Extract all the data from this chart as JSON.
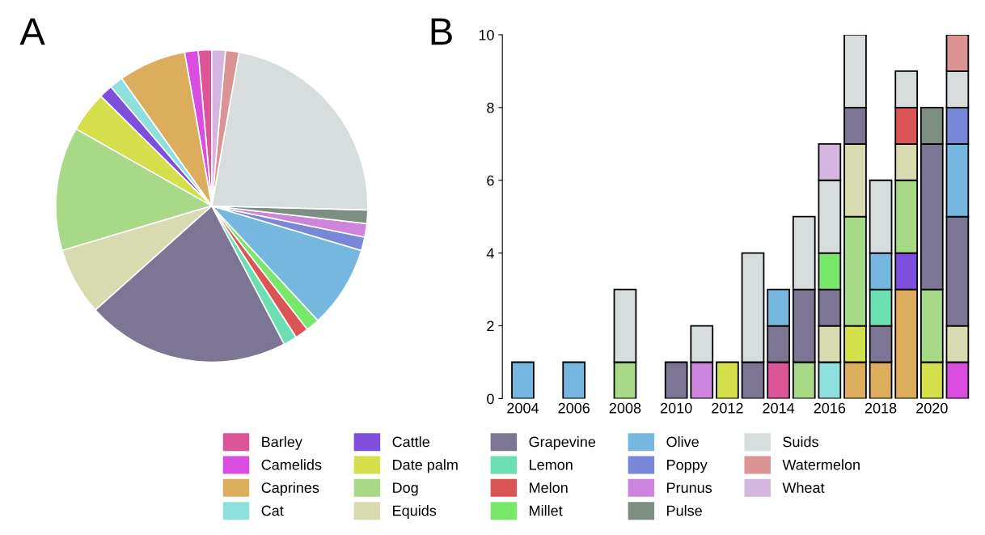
{
  "chart_data": [
    {
      "type": "pie",
      "title": "A",
      "legend": "bottom",
      "categories": [
        "Barley",
        "Camelids",
        "Caprines",
        "Cat",
        "Cattle",
        "Date palm",
        "Dog",
        "Equids",
        "Grapevine",
        "Lemon",
        "Melon",
        "Millet",
        "Olive",
        "Poppy",
        "Prunus",
        "Pulse",
        "Suids",
        "Watermelon",
        "Wheat"
      ],
      "values": [
        1.4,
        1.4,
        7.0,
        1.4,
        1.4,
        4.2,
        12.8,
        7.0,
        21.1,
        1.4,
        1.4,
        1.4,
        8.5,
        1.4,
        1.4,
        1.4,
        22.6,
        1.4,
        1.4
      ],
      "colors": [
        "#dc5597",
        "#d94de0",
        "#dcad5c",
        "#8ee0df",
        "#7e4fdc",
        "#d4e04b",
        "#a8d987",
        "#d8dbb0",
        "#7c7593",
        "#6bdfb1",
        "#dc5556",
        "#77e86a",
        "#76b7e0",
        "#7788d9",
        "#cd84dc",
        "#7c8f82",
        "#d7dcdc",
        "#db9393",
        "#d4b6e0"
      ]
    },
    {
      "type": "bar",
      "title": "B",
      "stacked": true,
      "categories": [
        "2004",
        null,
        "2006",
        null,
        "2008",
        null,
        "2010",
        null,
        "2012",
        null,
        "2014",
        null,
        "2016",
        null,
        "2018",
        null,
        "2020",
        null
      ],
      "ylim": [
        0,
        10
      ],
      "yticks": [
        0,
        2,
        4,
        6,
        8,
        10
      ],
      "series": [
        {
          "color": "#dc5597",
          "values": [
            0,
            0,
            0,
            0,
            0,
            0,
            0,
            0,
            0,
            0,
            1,
            0,
            0,
            0,
            0,
            0,
            0,
            0
          ]
        },
        {
          "color": "#d94de0",
          "values": [
            0,
            0,
            0,
            0,
            0,
            0,
            0,
            0,
            0,
            0,
            0,
            0,
            0,
            0,
            0,
            0,
            0,
            1
          ]
        },
        {
          "color": "#dcad5c",
          "values": [
            0,
            0,
            0,
            0,
            0,
            0,
            0,
            0,
            0,
            0,
            0,
            0,
            0,
            1,
            1,
            3,
            0,
            0
          ]
        },
        {
          "color": "#8ee0df",
          "values": [
            0,
            0,
            0,
            0,
            0,
            0,
            0,
            0,
            0,
            0,
            0,
            0,
            1,
            0,
            0,
            0,
            0,
            0
          ]
        },
        {
          "color": "#7e4fdc",
          "values": [
            0,
            0,
            0,
            0,
            0,
            0,
            0,
            0,
            0,
            0,
            0,
            0,
            0,
            0,
            0,
            1,
            0,
            0
          ]
        },
        {
          "color": "#d4e04b",
          "values": [
            0,
            0,
            0,
            0,
            0,
            0,
            0,
            0,
            1,
            0,
            0,
            0,
            0,
            1,
            0,
            0,
            1,
            0
          ]
        },
        {
          "color": "#a8d987",
          "values": [
            0,
            0,
            0,
            0,
            1,
            0,
            0,
            0,
            0,
            0,
            0,
            1,
            0,
            3,
            0,
            2,
            2,
            0
          ]
        },
        {
          "color": "#d8dbb0",
          "values": [
            0,
            0,
            0,
            0,
            0,
            0,
            0,
            0,
            0,
            0,
            0,
            0,
            1,
            2,
            0,
            1,
            0,
            1
          ]
        },
        {
          "color": "#7c7593",
          "values": [
            0,
            0,
            0,
            0,
            0,
            0,
            1,
            0,
            0,
            1,
            1,
            2,
            1,
            1,
            1,
            0,
            4,
            3
          ]
        },
        {
          "color": "#6bdfb1",
          "values": [
            0,
            0,
            0,
            0,
            0,
            0,
            0,
            0,
            0,
            0,
            0,
            0,
            0,
            0,
            1,
            0,
            0,
            0
          ]
        },
        {
          "color": "#dc5556",
          "values": [
            0,
            0,
            0,
            0,
            0,
            0,
            0,
            0,
            0,
            0,
            0,
            0,
            0,
            0,
            0,
            1,
            0,
            0
          ]
        },
        {
          "color": "#77e86a",
          "values": [
            0,
            0,
            0,
            0,
            0,
            0,
            0,
            0,
            0,
            0,
            0,
            0,
            1,
            0,
            0,
            0,
            0,
            0
          ]
        },
        {
          "color": "#76b7e0",
          "values": [
            1,
            0,
            1,
            0,
            0,
            0,
            0,
            0,
            0,
            0,
            1,
            0,
            0,
            0,
            1,
            0,
            0,
            2
          ]
        },
        {
          "color": "#7788d9",
          "values": [
            0,
            0,
            0,
            0,
            0,
            0,
            0,
            0,
            0,
            0,
            0,
            0,
            0,
            0,
            0,
            0,
            0,
            1
          ]
        },
        {
          "color": "#cd84dc",
          "values": [
            0,
            0,
            0,
            0,
            0,
            0,
            0,
            1,
            0,
            0,
            0,
            0,
            0,
            0,
            0,
            0,
            0,
            0
          ]
        },
        {
          "color": "#7c8f82",
          "values": [
            0,
            0,
            0,
            0,
            0,
            0,
            0,
            0,
            0,
            0,
            0,
            0,
            0,
            0,
            0,
            0,
            1,
            0
          ]
        },
        {
          "color": "#d7dcdc",
          "values": [
            0,
            0,
            0,
            0,
            2,
            0,
            0,
            1,
            0,
            3,
            0,
            2,
            2,
            2,
            2,
            1,
            0,
            1
          ]
        },
        {
          "color": "#db9393",
          "values": [
            0,
            0,
            0,
            0,
            0,
            0,
            0,
            0,
            0,
            0,
            0,
            0,
            0,
            0,
            0,
            0,
            0,
            1
          ]
        },
        {
          "color": "#d4b6e0",
          "values": [
            0,
            0,
            0,
            0,
            0,
            0,
            0,
            0,
            0,
            0,
            0,
            0,
            1,
            0,
            0,
            0,
            0,
            0
          ]
        }
      ]
    }
  ]
}
